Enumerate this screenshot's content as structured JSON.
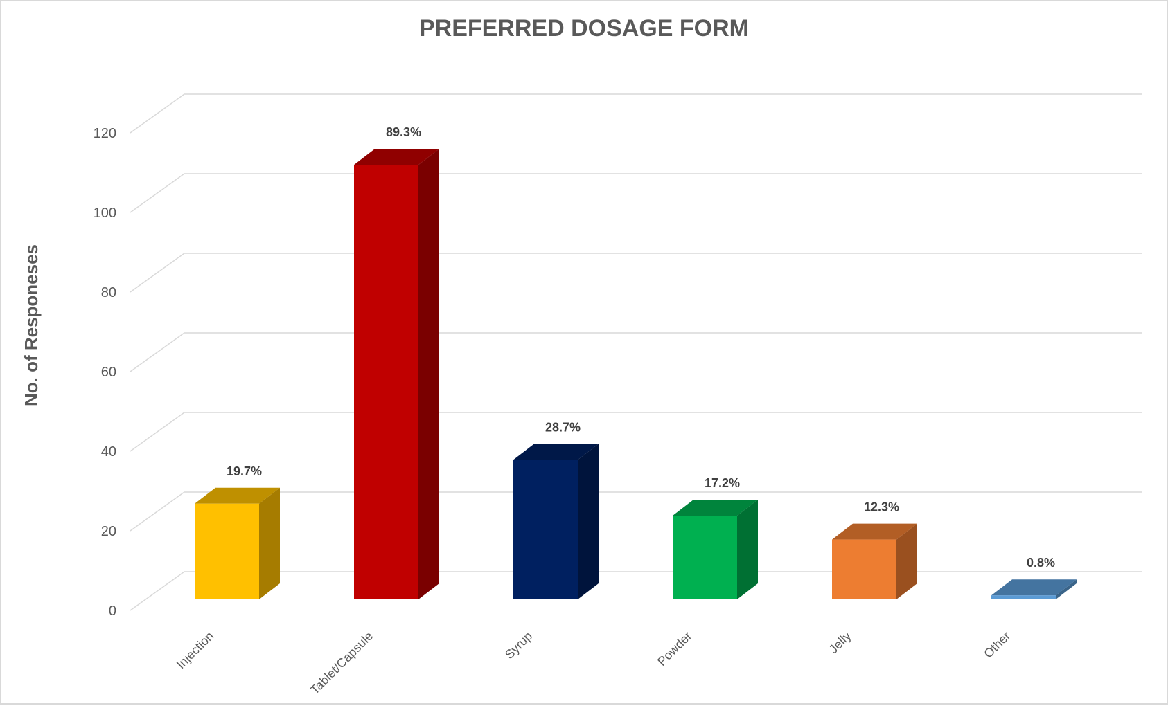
{
  "chart_data": {
    "type": "bar",
    "title": "PREFERRED DOSAGE FORM",
    "xlabel": "",
    "ylabel": "No. of Responeses",
    "ylim": [
      0,
      120
    ],
    "yticks": [
      "0",
      "20",
      "40",
      "60",
      "80",
      "100",
      "120"
    ],
    "grid": true,
    "style": "3d-column",
    "categories": [
      "Injection",
      "Tablet/Capsule",
      "Syrup",
      "Powder",
      "Jelly",
      "Other"
    ],
    "values": [
      24,
      109,
      35,
      21,
      15,
      1
    ],
    "data_labels": [
      "19.7%",
      "89.3%",
      "28.7%",
      "17.2%",
      "12.3%",
      "0.8%"
    ],
    "colors": [
      {
        "front": "#FFC000",
        "top": "#BF9000",
        "side": "#A67C00"
      },
      {
        "front": "#C00000",
        "top": "#900000",
        "side": "#7A0000"
      },
      {
        "front": "#002060",
        "top": "#001848",
        "side": "#00143C"
      },
      {
        "front": "#00B050",
        "top": "#00843C",
        "side": "#007033"
      },
      {
        "front": "#ED7D31",
        "top": "#B25E25",
        "side": "#9A501F"
      },
      {
        "front": "#5B9BD5",
        "top": "#4474A0",
        "side": "#3A6489"
      }
    ]
  }
}
